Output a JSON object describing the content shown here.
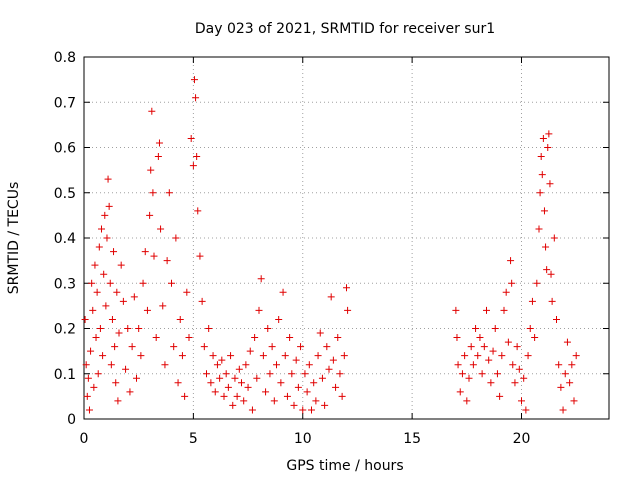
{
  "chart_data": {
    "type": "scatter",
    "title": "Day 023 of 2021, SRMTID for receiver sur1",
    "xlabel": "GPS time / hours",
    "ylabel": "SRMTID / TECUs",
    "xlim": [
      0,
      24
    ],
    "ylim": [
      0,
      0.8
    ],
    "xticks": [
      0,
      5,
      10,
      15,
      20
    ],
    "yticks": [
      0,
      0.1,
      0.2,
      0.3,
      0.4,
      0.5,
      0.6,
      0.7,
      0.8
    ],
    "grid": true,
    "marker": "+",
    "series_color": "#e00000",
    "series": [
      {
        "name": "SRMTID",
        "points": [
          [
            0.05,
            0.22
          ],
          [
            0.1,
            0.12
          ],
          [
            0.15,
            0.05
          ],
          [
            0.2,
            0.09
          ],
          [
            0.25,
            0.02
          ],
          [
            0.3,
            0.15
          ],
          [
            0.35,
            0.3
          ],
          [
            0.4,
            0.24
          ],
          [
            0.45,
            0.07
          ],
          [
            0.5,
            0.34
          ],
          [
            0.55,
            0.18
          ],
          [
            0.6,
            0.28
          ],
          [
            0.65,
            0.1
          ],
          [
            0.7,
            0.38
          ],
          [
            0.75,
            0.2
          ],
          [
            0.8,
            0.42
          ],
          [
            0.85,
            0.14
          ],
          [
            0.9,
            0.32
          ],
          [
            0.95,
            0.45
          ],
          [
            1.0,
            0.25
          ],
          [
            1.05,
            0.4
          ],
          [
            1.1,
            0.53
          ],
          [
            1.15,
            0.47
          ],
          [
            1.2,
            0.3
          ],
          [
            1.25,
            0.12
          ],
          [
            1.3,
            0.22
          ],
          [
            1.35,
            0.37
          ],
          [
            1.4,
            0.16
          ],
          [
            1.45,
            0.08
          ],
          [
            1.5,
            0.28
          ],
          [
            1.55,
            0.04
          ],
          [
            1.6,
            0.19
          ],
          [
            1.7,
            0.34
          ],
          [
            1.8,
            0.26
          ],
          [
            1.9,
            0.11
          ],
          [
            2.0,
            0.2
          ],
          [
            2.1,
            0.06
          ],
          [
            2.2,
            0.16
          ],
          [
            2.3,
            0.27
          ],
          [
            2.4,
            0.09
          ],
          [
            2.5,
            0.2
          ],
          [
            2.6,
            0.14
          ],
          [
            2.7,
            0.3
          ],
          [
            2.8,
            0.37
          ],
          [
            2.9,
            0.24
          ],
          [
            3.0,
            0.45
          ],
          [
            3.05,
            0.55
          ],
          [
            3.1,
            0.68
          ],
          [
            3.15,
            0.5
          ],
          [
            3.2,
            0.36
          ],
          [
            3.3,
            0.18
          ],
          [
            3.4,
            0.58
          ],
          [
            3.45,
            0.61
          ],
          [
            3.5,
            0.42
          ],
          [
            3.6,
            0.25
          ],
          [
            3.7,
            0.12
          ],
          [
            3.8,
            0.35
          ],
          [
            3.9,
            0.5
          ],
          [
            4.0,
            0.3
          ],
          [
            4.1,
            0.16
          ],
          [
            4.2,
            0.4
          ],
          [
            4.3,
            0.08
          ],
          [
            4.4,
            0.22
          ],
          [
            4.5,
            0.14
          ],
          [
            4.6,
            0.05
          ],
          [
            4.7,
            0.28
          ],
          [
            4.8,
            0.18
          ],
          [
            4.9,
            0.62
          ],
          [
            5.0,
            0.56
          ],
          [
            5.05,
            0.75
          ],
          [
            5.1,
            0.71
          ],
          [
            5.15,
            0.58
          ],
          [
            5.2,
            0.46
          ],
          [
            5.3,
            0.36
          ],
          [
            5.4,
            0.26
          ],
          [
            5.5,
            0.16
          ],
          [
            5.6,
            0.1
          ],
          [
            5.7,
            0.2
          ],
          [
            5.8,
            0.08
          ],
          [
            5.9,
            0.14
          ],
          [
            6.0,
            0.06
          ],
          [
            6.1,
            0.12
          ],
          [
            6.2,
            0.09
          ],
          [
            6.3,
            0.13
          ],
          [
            6.4,
            0.05
          ],
          [
            6.5,
            0.1
          ],
          [
            6.6,
            0.07
          ],
          [
            6.7,
            0.14
          ],
          [
            6.8,
            0.03
          ],
          [
            6.9,
            0.09
          ],
          [
            7.0,
            0.05
          ],
          [
            7.1,
            0.11
          ],
          [
            7.2,
            0.08
          ],
          [
            7.3,
            0.04
          ],
          [
            7.4,
            0.12
          ],
          [
            7.5,
            0.07
          ],
          [
            7.6,
            0.15
          ],
          [
            7.7,
            0.02
          ],
          [
            7.8,
            0.18
          ],
          [
            7.9,
            0.09
          ],
          [
            8.0,
            0.24
          ],
          [
            8.1,
            0.31
          ],
          [
            8.2,
            0.14
          ],
          [
            8.3,
            0.06
          ],
          [
            8.4,
            0.2
          ],
          [
            8.5,
            0.1
          ],
          [
            8.6,
            0.16
          ],
          [
            8.7,
            0.04
          ],
          [
            8.8,
            0.12
          ],
          [
            8.9,
            0.22
          ],
          [
            9.0,
            0.08
          ],
          [
            9.1,
            0.28
          ],
          [
            9.2,
            0.14
          ],
          [
            9.3,
            0.05
          ],
          [
            9.4,
            0.18
          ],
          [
            9.5,
            0.1
          ],
          [
            9.6,
            0.03
          ],
          [
            9.7,
            0.13
          ],
          [
            9.8,
            0.07
          ],
          [
            9.9,
            0.16
          ],
          [
            10.0,
            0.02
          ],
          [
            10.1,
            0.1
          ],
          [
            10.2,
            0.06
          ],
          [
            10.3,
            0.12
          ],
          [
            10.4,
            0.02
          ],
          [
            10.5,
            0.08
          ],
          [
            10.6,
            0.04
          ],
          [
            10.7,
            0.14
          ],
          [
            10.8,
            0.19
          ],
          [
            10.9,
            0.09
          ],
          [
            11.0,
            0.03
          ],
          [
            11.1,
            0.16
          ],
          [
            11.2,
            0.11
          ],
          [
            11.3,
            0.27
          ],
          [
            11.4,
            0.13
          ],
          [
            11.5,
            0.07
          ],
          [
            11.6,
            0.18
          ],
          [
            11.7,
            0.1
          ],
          [
            11.8,
            0.05
          ],
          [
            11.9,
            0.14
          ],
          [
            12.0,
            0.29
          ],
          [
            12.05,
            0.24
          ],
          [
            17.0,
            0.24
          ],
          [
            17.05,
            0.18
          ],
          [
            17.1,
            0.12
          ],
          [
            17.2,
            0.06
          ],
          [
            17.3,
            0.1
          ],
          [
            17.4,
            0.14
          ],
          [
            17.5,
            0.04
          ],
          [
            17.6,
            0.09
          ],
          [
            17.7,
            0.16
          ],
          [
            17.8,
            0.12
          ],
          [
            17.9,
            0.2
          ],
          [
            18.0,
            0.14
          ],
          [
            18.1,
            0.18
          ],
          [
            18.2,
            0.1
          ],
          [
            18.3,
            0.16
          ],
          [
            18.4,
            0.24
          ],
          [
            18.5,
            0.13
          ],
          [
            18.6,
            0.08
          ],
          [
            18.7,
            0.15
          ],
          [
            18.8,
            0.2
          ],
          [
            18.9,
            0.1
          ],
          [
            19.0,
            0.05
          ],
          [
            19.1,
            0.14
          ],
          [
            19.2,
            0.24
          ],
          [
            19.3,
            0.28
          ],
          [
            19.4,
            0.17
          ],
          [
            19.5,
            0.35
          ],
          [
            19.55,
            0.3
          ],
          [
            19.6,
            0.12
          ],
          [
            19.7,
            0.08
          ],
          [
            19.8,
            0.16
          ],
          [
            19.9,
            0.11
          ],
          [
            20.0,
            0.04
          ],
          [
            20.1,
            0.09
          ],
          [
            20.2,
            0.02
          ],
          [
            20.3,
            0.14
          ],
          [
            20.4,
            0.2
          ],
          [
            20.5,
            0.26
          ],
          [
            20.6,
            0.18
          ],
          [
            20.7,
            0.3
          ],
          [
            20.8,
            0.42
          ],
          [
            20.85,
            0.5
          ],
          [
            20.9,
            0.58
          ],
          [
            20.95,
            0.54
          ],
          [
            21.0,
            0.62
          ],
          [
            21.05,
            0.46
          ],
          [
            21.1,
            0.38
          ],
          [
            21.15,
            0.33
          ],
          [
            21.2,
            0.6
          ],
          [
            21.25,
            0.63
          ],
          [
            21.3,
            0.52
          ],
          [
            21.35,
            0.32
          ],
          [
            21.4,
            0.26
          ],
          [
            21.5,
            0.4
          ],
          [
            21.6,
            0.22
          ],
          [
            21.7,
            0.12
          ],
          [
            21.8,
            0.07
          ],
          [
            21.9,
            0.02
          ],
          [
            22.0,
            0.1
          ],
          [
            22.1,
            0.17
          ],
          [
            22.2,
            0.08
          ],
          [
            22.3,
            0.12
          ],
          [
            22.4,
            0.04
          ],
          [
            22.5,
            0.14
          ]
        ]
      }
    ]
  }
}
